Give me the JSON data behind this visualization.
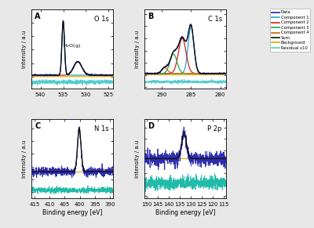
{
  "panel_A": {
    "label": "A",
    "title": "O 1s",
    "xlabel": "",
    "ylabel": "Intensity / a.u",
    "xlim": [
      542,
      524
    ],
    "xticks": [
      540,
      535,
      530,
      525
    ],
    "annotation": "H₂O(g)"
  },
  "panel_B": {
    "label": "B",
    "title": "C 1s",
    "xlabel": "",
    "ylabel": "Intensity / a.u",
    "xlim": [
      293,
      279
    ],
    "xticks": [
      290,
      285,
      280
    ]
  },
  "panel_C": {
    "label": "C",
    "title": "N 1s",
    "xlabel": "Binding energy [eV]",
    "ylabel": "Intensity / a.u",
    "xlim": [
      416,
      389
    ],
    "xticks": [
      415,
      410,
      405,
      400,
      395,
      390
    ]
  },
  "panel_D": {
    "label": "D",
    "title": "P 2p",
    "xlabel": "Binding energy [eV]",
    "ylabel": "Intensity / a.u",
    "xlim": [
      151,
      114
    ],
    "xticks": [
      150,
      145,
      140,
      135,
      130,
      125,
      120,
      115
    ]
  },
  "colors": {
    "data": "#2222aa",
    "component1": "#22aacc",
    "component2": "#cc2222",
    "component3": "#22aa44",
    "component4": "#cc6600",
    "sum": "#111111",
    "background": "#ddaa00",
    "residual": "#55cccc",
    "cryo": "#22bbaa"
  },
  "legend_labels": [
    "Data",
    "Component 1",
    "Component 2",
    "Component 3",
    "Component 4",
    "Sum",
    "Background",
    "Residual x10"
  ],
  "figure_bg": "#e8e8e8",
  "panel_bg": "#ffffff"
}
